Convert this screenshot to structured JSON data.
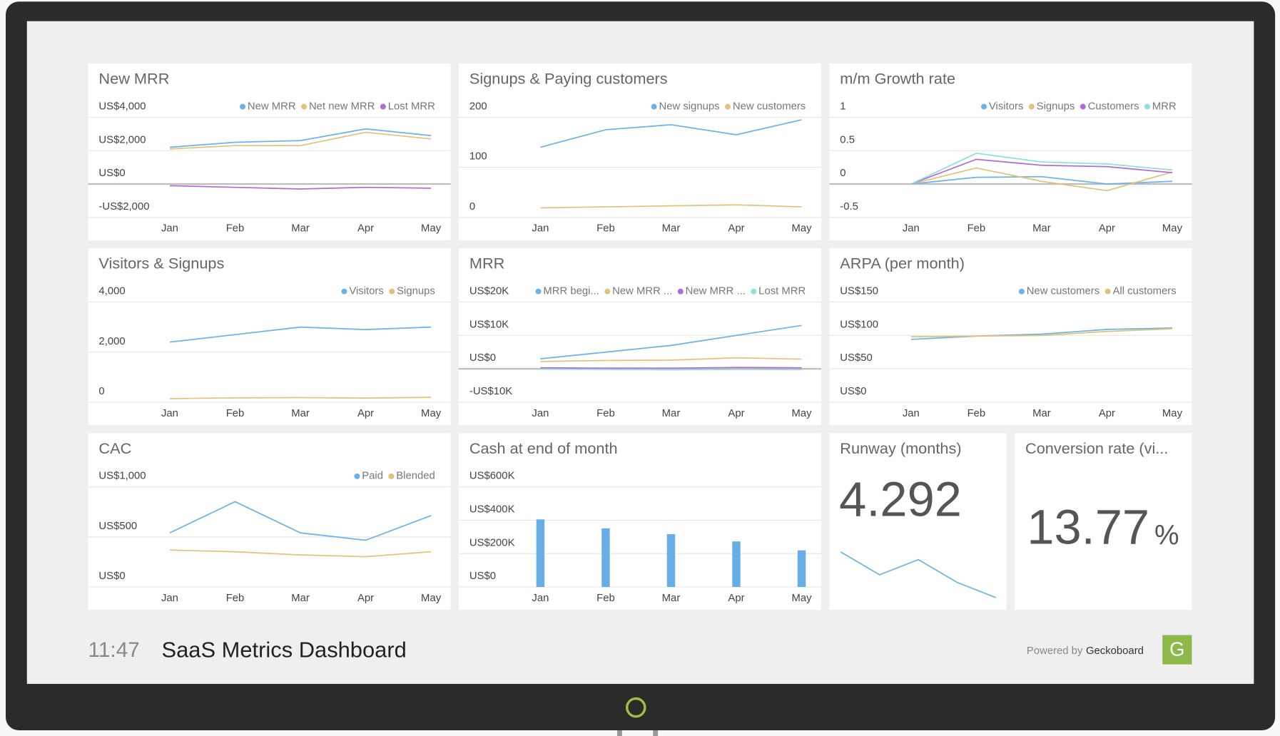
{
  "chart_data": [
    {
      "type": "line",
      "title": "New MRR",
      "categories": [
        "Jan",
        "Feb",
        "Mar",
        "Apr",
        "May"
      ],
      "series": [
        {
          "name": "New MRR",
          "color": "#6cb2e8",
          "values": [
            2200,
            2500,
            2600,
            3300,
            2900
          ]
        },
        {
          "name": "Net new MRR",
          "color": "#e0c27a",
          "values": [
            2100,
            2300,
            2300,
            3100,
            2700
          ]
        },
        {
          "name": "Lost MRR",
          "color": "#b06bd6",
          "values": [
            -100,
            -200,
            -300,
            -200,
            -250
          ]
        }
      ],
      "ylim": [
        -2000,
        4000
      ],
      "yticks": [
        {
          "value": -2000,
          "label": "-US$2,000"
        },
        {
          "value": 0,
          "label": "US$0"
        },
        {
          "value": 2000,
          "label": "US$2,000"
        },
        {
          "value": 4000,
          "label": "US$4,000"
        }
      ],
      "grid": true
    },
    {
      "type": "line",
      "title": "Signups & Paying customers",
      "categories": [
        "Jan",
        "Feb",
        "Mar",
        "Apr",
        "May"
      ],
      "series": [
        {
          "name": "New signups",
          "color": "#6cb2e8",
          "values": [
            140,
            175,
            185,
            165,
            195
          ]
        },
        {
          "name": "New customers",
          "color": "#e0c27a",
          "values": [
            19,
            21,
            23,
            25,
            21
          ]
        }
      ],
      "ylim": [
        0,
        200
      ],
      "yticks": [
        0,
        100,
        200
      ],
      "grid": true
    },
    {
      "type": "line",
      "title": "m/m Growth rate",
      "categories": [
        "Jan",
        "Feb",
        "Mar",
        "Apr",
        "May"
      ],
      "series": [
        {
          "name": "Visitors",
          "color": "#6cb2e8",
          "values": [
            0,
            0.1,
            0.11,
            0,
            0.04
          ]
        },
        {
          "name": "Signups",
          "color": "#e0c27a",
          "values": [
            0,
            0.24,
            0.04,
            -0.1,
            0.18
          ]
        },
        {
          "name": "Customers",
          "color": "#b06bd6",
          "values": [
            0,
            0.37,
            0.28,
            0.26,
            0.17
          ]
        },
        {
          "name": "MRR",
          "color": "#8fe0dc",
          "values": [
            0,
            0.46,
            0.33,
            0.3,
            0.21
          ]
        }
      ],
      "ylim": [
        -0.5,
        1
      ],
      "yticks": [
        -0.5,
        0,
        0.5,
        1
      ],
      "grid": true
    },
    {
      "type": "line",
      "title": "Visitors & Signups",
      "categories": [
        "Jan",
        "Feb",
        "Mar",
        "Apr",
        "May"
      ],
      "series": [
        {
          "name": "Visitors",
          "color": "#6cb2e8",
          "values": [
            2400,
            2700,
            3000,
            2900,
            3000
          ]
        },
        {
          "name": "Signups",
          "color": "#e0c27a",
          "values": [
            140,
            175,
            185,
            165,
            195
          ]
        }
      ],
      "ylim": [
        0,
        4000
      ],
      "yticks": [
        0,
        {
          "value": 2000,
          "label": "2,000"
        },
        {
          "value": 4000,
          "label": "4,000"
        }
      ],
      "grid": true
    },
    {
      "type": "line",
      "title": "MRR",
      "categories": [
        "Jan",
        "Feb",
        "Mar",
        "Apr",
        "May"
      ],
      "series": [
        {
          "name": "MRR begi...",
          "color": "#6cb2e8",
          "values": [
            3000,
            5000,
            7000,
            10000,
            13000
          ]
        },
        {
          "name": "New MRR ...",
          "color": "#e0c27a",
          "values": [
            2200,
            2500,
            2600,
            3300,
            2900
          ]
        },
        {
          "name": "New MRR ...",
          "color": "#b06bd6",
          "values": [
            300,
            200,
            200,
            400,
            300
          ]
        },
        {
          "name": "Lost MRR",
          "color": "#8fe0dc",
          "values": [
            -100,
            -200,
            -300,
            -200,
            -250
          ]
        }
      ],
      "ylim": [
        -10000,
        20000
      ],
      "yticks": [
        {
          "value": -10000,
          "label": "-US$10K"
        },
        {
          "value": 0,
          "label": "US$0"
        },
        {
          "value": 10000,
          "label": "US$10K"
        },
        {
          "value": 20000,
          "label": "US$20K"
        }
      ],
      "grid": true
    },
    {
      "type": "line",
      "title": "ARPA (per month)",
      "categories": [
        "Jan",
        "Feb",
        "Mar",
        "Apr",
        "May"
      ],
      "series": [
        {
          "name": "New customers",
          "color": "#6cb2e8",
          "values": [
            94,
            99,
            102,
            109,
            111
          ]
        },
        {
          "name": "All customers",
          "color": "#e0c27a",
          "values": [
            98,
            99,
            100,
            106,
            110
          ]
        }
      ],
      "ylim": [
        0,
        150
      ],
      "yticks": [
        {
          "value": 0,
          "label": "US$0"
        },
        {
          "value": 50,
          "label": "US$50"
        },
        {
          "value": 100,
          "label": "US$100"
        },
        {
          "value": 150,
          "label": "US$150"
        }
      ],
      "grid": true
    },
    {
      "type": "line",
      "title": "CAC",
      "categories": [
        "Jan",
        "Feb",
        "Mar",
        "Apr",
        "May"
      ],
      "series": [
        {
          "name": "Paid",
          "color": "#6cb2e8",
          "values": [
            541,
            852,
            541,
            467,
            713
          ]
        },
        {
          "name": "Blended",
          "color": "#e0c27a",
          "values": [
            369,
            352,
            320,
            303,
            352
          ]
        }
      ],
      "ylim": [
        0,
        1000
      ],
      "yticks": [
        {
          "value": 0,
          "label": "US$0"
        },
        {
          "value": 500,
          "label": "US$500"
        },
        {
          "value": 1000,
          "label": "US$1,000"
        }
      ],
      "grid": true
    },
    {
      "type": "bar",
      "title": "Cash at end of month",
      "categories": [
        "Jan",
        "Feb",
        "Mar",
        "Apr",
        "May"
      ],
      "values": [
        405000,
        351000,
        317000,
        273000,
        220000
      ],
      "color": "#67aee8",
      "ylim": [
        0,
        600000
      ],
      "yticks": [
        {
          "value": 0,
          "label": "US$0"
        },
        {
          "value": 200000,
          "label": "US$200K"
        },
        {
          "value": 400000,
          "label": "US$400K"
        },
        {
          "value": 600000,
          "label": "US$600K"
        }
      ],
      "grid": true
    }
  ],
  "runway": {
    "title": "Runway (months)",
    "value": "4.292",
    "trend": [
      5.5,
      4.9,
      5.3,
      4.7,
      4.3
    ],
    "color": "#6cb2e8"
  },
  "conversion": {
    "title": "Conversion rate (vi...",
    "value": "13.77",
    "unit": "%"
  },
  "footer": {
    "time": "11:47",
    "title": "SaaS Metrics Dashboard",
    "powered": "Powered by",
    "brand": "Geckoboard",
    "logo": "G"
  }
}
